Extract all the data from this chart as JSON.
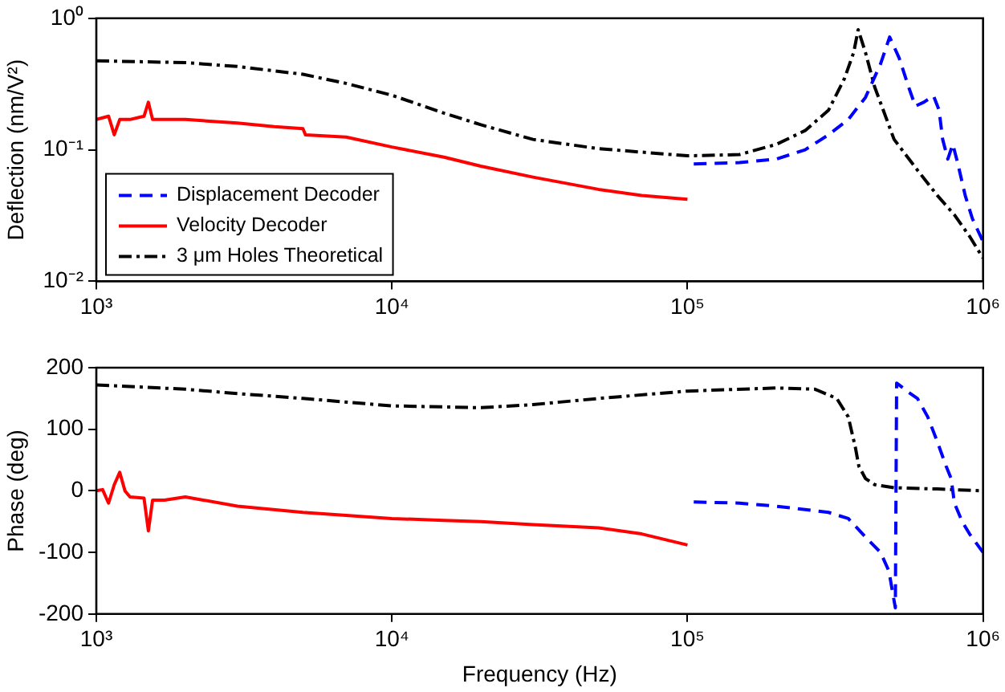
{
  "chart_data": [
    {
      "type": "line",
      "ylabel": "Deflection (nm/V²)",
      "log": "xy",
      "grid": false,
      "legend": "bottom left",
      "marker": "none",
      "xlim": [
        1000,
        1000000
      ],
      "xticks": [
        {
          "value": 1000,
          "label": "10³"
        },
        {
          "value": 10000,
          "label": "10⁴"
        },
        {
          "value": 100000,
          "label": "10⁵"
        },
        {
          "value": 1000000,
          "label": "10⁶"
        }
      ],
      "ylim": [
        0.01,
        1
      ],
      "yticks": [
        {
          "value": 0.01,
          "label": "10⁻²"
        },
        {
          "value": 0.1,
          "label": "10⁻¹"
        },
        {
          "value": 1,
          "label": "10⁰"
        }
      ],
      "series": [
        {
          "name": "Displacement Decoder",
          "color": "#0000ff",
          "line_style": "dashed",
          "x": [
            105000,
            150000,
            200000,
            250000,
            300000,
            350000,
            400000,
            450000,
            483000,
            520000,
            560000,
            590000,
            630000,
            680000,
            710000,
            730000,
            760000,
            790000,
            820000,
            870000,
            920000,
            1000000
          ],
          "values": [
            0.078,
            0.08,
            0.085,
            0.1,
            0.13,
            0.17,
            0.25,
            0.45,
            0.72,
            0.5,
            0.3,
            0.215,
            0.23,
            0.257,
            0.2,
            0.12,
            0.085,
            0.11,
            0.08,
            0.045,
            0.03,
            0.02
          ]
        },
        {
          "name": "Velocity Decoder",
          "color": "#ff0000",
          "line_style": "solid",
          "x": [
            1000,
            1100,
            1150,
            1200,
            1300,
            1450,
            1500,
            1550,
            1700,
            2000,
            3000,
            4000,
            5000,
            5100,
            7000,
            10000,
            15000,
            20000,
            30000,
            50000,
            70000,
            100000
          ],
          "values": [
            0.17,
            0.18,
            0.13,
            0.17,
            0.17,
            0.18,
            0.23,
            0.17,
            0.17,
            0.17,
            0.16,
            0.15,
            0.145,
            0.13,
            0.125,
            0.105,
            0.088,
            0.075,
            0.062,
            0.05,
            0.045,
            0.042
          ]
        },
        {
          "name": "3 μm Holes Theoretical",
          "color": "#000000",
          "line_style": "dashdot",
          "x": [
            1000,
            2000,
            3000,
            5000,
            7000,
            10000,
            15000,
            20000,
            30000,
            50000,
            100000,
            150000,
            200000,
            250000,
            300000,
            340000,
            365000,
            378000,
            400000,
            430000,
            500000,
            600000,
            700000,
            800000,
            900000,
            1000000
          ],
          "values": [
            0.475,
            0.46,
            0.43,
            0.375,
            0.32,
            0.26,
            0.19,
            0.155,
            0.12,
            0.102,
            0.09,
            0.092,
            0.11,
            0.14,
            0.2,
            0.35,
            0.55,
            0.82,
            0.55,
            0.3,
            0.12,
            0.07,
            0.045,
            0.032,
            0.022,
            0.015
          ]
        }
      ]
    },
    {
      "type": "line",
      "xlabel": "Frequency (Hz)",
      "ylabel": "Phase (deg)",
      "log": "x",
      "grid": false,
      "legend": false,
      "marker": "none",
      "xlim": [
        1000,
        1000000
      ],
      "xticks": [
        {
          "value": 1000,
          "label": "10³"
        },
        {
          "value": 10000,
          "label": "10⁴"
        },
        {
          "value": 100000,
          "label": "10⁵"
        },
        {
          "value": 1000000,
          "label": "10⁶"
        }
      ],
      "ylim": [
        -200,
        200
      ],
      "yticks": [
        -200,
        -100,
        0,
        100,
        200
      ],
      "series": [
        {
          "color": "#0000ff",
          "line_style": "dashed",
          "x": [
            105000,
            150000,
            200000,
            300000,
            350000,
            400000,
            450000,
            480000,
            505000,
            510000,
            560000,
            600000,
            650000,
            700000,
            750000,
            780000,
            800000,
            850000,
            900000,
            1000000
          ],
          "values": [
            -18,
            -20,
            -25,
            -35,
            -45,
            -75,
            -100,
            -130,
            -190,
            175,
            160,
            150,
            120,
            80,
            40,
            20,
            -20,
            -50,
            -70,
            -100
          ]
        },
        {
          "color": "#ff0000",
          "line_style": "solid",
          "x": [
            1000,
            1050,
            1100,
            1150,
            1200,
            1250,
            1300,
            1450,
            1500,
            1550,
            1700,
            2000,
            2300,
            3000,
            5000,
            7000,
            10000,
            15000,
            20000,
            30000,
            50000,
            70000,
            100000
          ],
          "values": [
            0,
            2,
            -20,
            10,
            30,
            0,
            -10,
            -12,
            -65,
            -15,
            -15,
            -10,
            -15,
            -25,
            -35,
            -40,
            -45,
            -48,
            -50,
            -55,
            -60,
            -70,
            -88
          ]
        },
        {
          "color": "#000000",
          "line_style": "dashdot",
          "x": [
            1000,
            2000,
            3000,
            5000,
            10000,
            20000,
            30000,
            50000,
            100000,
            200000,
            270000,
            320000,
            350000,
            370000,
            380000,
            400000,
            430000,
            500000,
            700000,
            1000000
          ],
          "values": [
            172,
            165,
            158,
            150,
            138,
            135,
            140,
            150,
            162,
            167,
            165,
            150,
            120,
            70,
            40,
            20,
            10,
            5,
            3,
            0
          ]
        }
      ]
    }
  ]
}
